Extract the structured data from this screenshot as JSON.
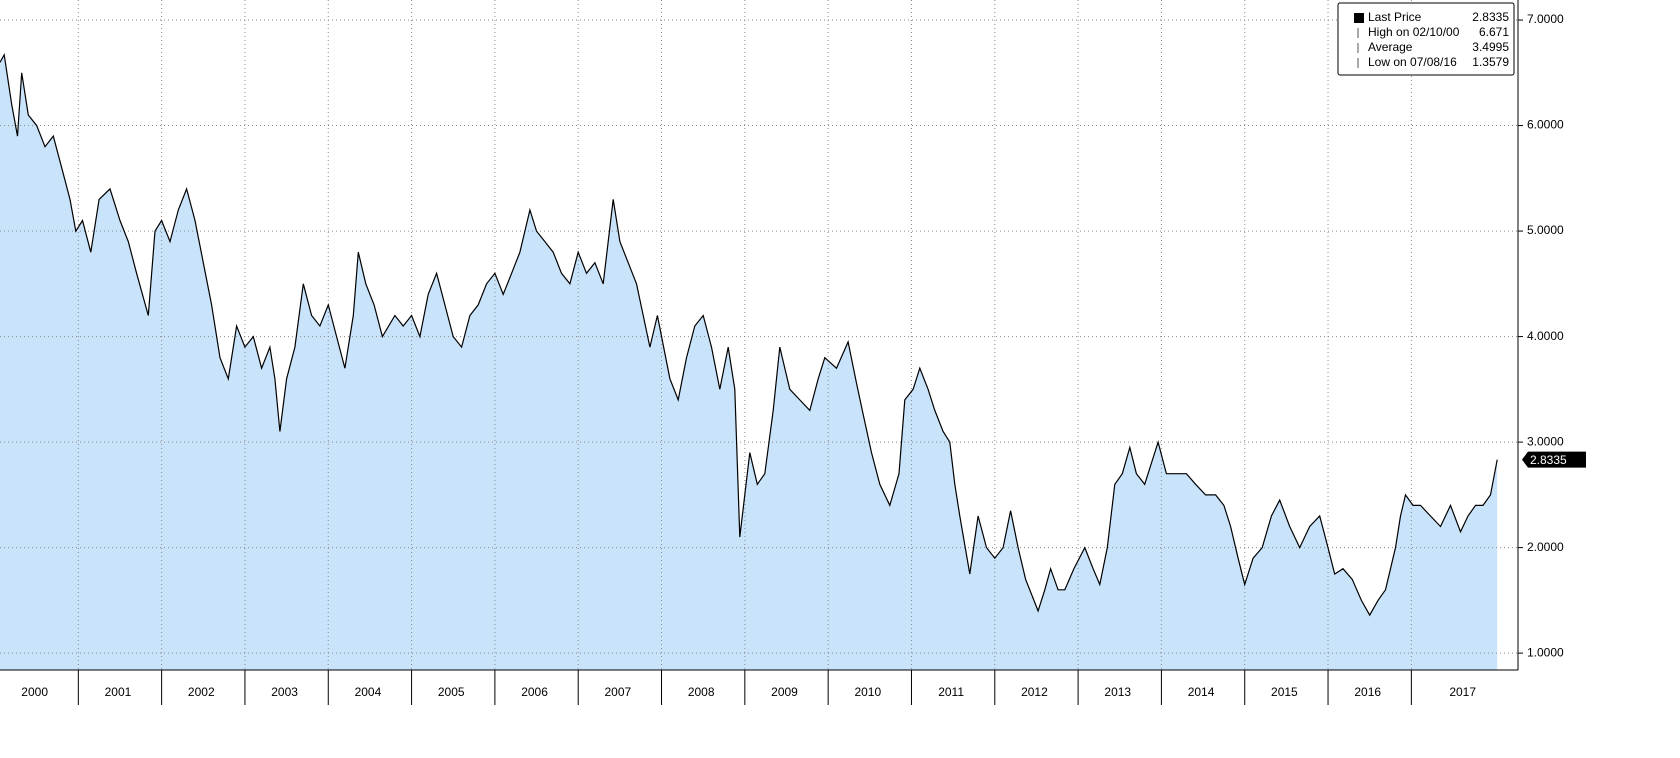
{
  "chart_data": {
    "type": "area",
    "color": "#000000",
    "fill": "#c9e3fb",
    "grid": true,
    "legend_position": "top-right",
    "xlim": [
      2000.06,
      2018.28
    ],
    "ylim": [
      0.84,
      7.19
    ],
    "xticks": [
      {
        "value": 2000,
        "label": "2000"
      },
      {
        "value": 2001,
        "label": "2001"
      },
      {
        "value": 2002,
        "label": "2002"
      },
      {
        "value": 2003,
        "label": "2003"
      },
      {
        "value": 2004,
        "label": "2004"
      },
      {
        "value": 2005,
        "label": "2005"
      },
      {
        "value": 2006,
        "label": "2006"
      },
      {
        "value": 2007,
        "label": "2007"
      },
      {
        "value": 2008,
        "label": "2008"
      },
      {
        "value": 2009,
        "label": "2009"
      },
      {
        "value": 2010,
        "label": "2010"
      },
      {
        "value": 2011,
        "label": "2011"
      },
      {
        "value": 2012,
        "label": "2012"
      },
      {
        "value": 2013,
        "label": "2013"
      },
      {
        "value": 2014,
        "label": "2014"
      },
      {
        "value": 2015,
        "label": "2015"
      },
      {
        "value": 2016,
        "label": "2016"
      },
      {
        "value": 2017,
        "label": "2017"
      }
    ],
    "yticks": [
      {
        "value": 1,
        "label": "1.0000"
      },
      {
        "value": 2,
        "label": "2.0000"
      },
      {
        "value": 3,
        "label": "3.0000"
      },
      {
        "value": 4,
        "label": "4.0000"
      },
      {
        "value": 5,
        "label": "5.0000"
      },
      {
        "value": 6,
        "label": "6.0000"
      },
      {
        "value": 7,
        "label": "7.0000"
      }
    ],
    "legend": [
      {
        "label": "Last Price",
        "value": 2.8335
      },
      {
        "label": "High on 02/10/00",
        "value": 6.671
      },
      {
        "label": "Average",
        "value": 3.4995
      },
      {
        "label": "Low on 07/08/16",
        "value": 1.3579
      }
    ],
    "x": [
      2000.06,
      2000.11,
      2000.2,
      2000.27,
      2000.32,
      2000.4,
      2000.5,
      2000.6,
      2000.7,
      2000.8,
      2000.9,
      2000.97,
      2001.05,
      2001.15,
      2001.25,
      2001.38,
      2001.5,
      2001.6,
      2001.7,
      2001.84,
      2001.92,
      2002.0,
      2002.1,
      2002.2,
      2002.3,
      2002.4,
      2002.5,
      2002.6,
      2002.7,
      2002.8,
      2002.9,
      2003.0,
      2003.1,
      2003.2,
      2003.3,
      2003.36,
      2003.42,
      2003.5,
      2003.6,
      2003.7,
      2003.8,
      2003.9,
      2004.0,
      2004.1,
      2004.2,
      2004.3,
      2004.36,
      2004.45,
      2004.55,
      2004.65,
      2004.8,
      2004.9,
      2005.0,
      2005.1,
      2005.2,
      2005.3,
      2005.4,
      2005.5,
      2005.6,
      2005.7,
      2005.8,
      2005.9,
      2006.0,
      2006.1,
      2006.2,
      2006.3,
      2006.42,
      2006.5,
      2006.6,
      2006.7,
      2006.8,
      2006.9,
      2007.0,
      2007.1,
      2007.2,
      2007.3,
      2007.42,
      2007.5,
      2007.6,
      2007.7,
      2007.86,
      2007.95,
      2008.1,
      2008.2,
      2008.3,
      2008.4,
      2008.5,
      2008.6,
      2008.7,
      2008.8,
      2008.88,
      2008.94,
      2009.06,
      2009.15,
      2009.24,
      2009.34,
      2009.42,
      2009.54,
      2009.66,
      2009.78,
      2009.88,
      2009.96,
      2010.1,
      2010.24,
      2010.33,
      2010.41,
      2010.52,
      2010.62,
      2010.74,
      2010.85,
      2010.92,
      2011.02,
      2011.1,
      2011.2,
      2011.28,
      2011.38,
      2011.46,
      2011.52,
      2011.58,
      2011.7,
      2011.8,
      2011.9,
      2012.0,
      2012.1,
      2012.19,
      2012.28,
      2012.37,
      2012.52,
      2012.6,
      2012.67,
      2012.76,
      2012.84,
      2012.95,
      2013.08,
      2013.18,
      2013.26,
      2013.35,
      2013.44,
      2013.53,
      2013.62,
      2013.7,
      2013.8,
      2013.88,
      2013.96,
      2014.06,
      2014.17,
      2014.3,
      2014.41,
      2014.53,
      2014.65,
      2014.75,
      2014.83,
      2014.92,
      2015.0,
      2015.1,
      2015.21,
      2015.32,
      2015.42,
      2015.54,
      2015.66,
      2015.78,
      2015.9,
      2016.0,
      2016.08,
      2016.18,
      2016.29,
      2016.4,
      2016.5,
      2016.6,
      2016.69,
      2016.75,
      2016.81,
      2016.87,
      2016.93,
      2017.02,
      2017.11,
      2017.23,
      2017.35,
      2017.47,
      2017.59,
      2017.68,
      2017.77,
      2017.86,
      2017.95,
      2018.03
    ],
    "series": [
      {
        "name": "Last Price",
        "values": [
          6.6,
          6.671,
          6.2,
          5.9,
          6.5,
          6.1,
          6.0,
          5.8,
          5.9,
          5.6,
          5.3,
          5.0,
          5.1,
          4.8,
          5.3,
          5.4,
          5.1,
          4.9,
          4.6,
          4.2,
          5.0,
          5.1,
          4.9,
          5.2,
          5.4,
          5.1,
          4.7,
          4.3,
          3.8,
          3.6,
          4.1,
          3.9,
          4.0,
          3.7,
          3.9,
          3.6,
          3.1,
          3.6,
          3.9,
          4.5,
          4.2,
          4.1,
          4.3,
          4.0,
          3.7,
          4.2,
          4.8,
          4.5,
          4.3,
          4.0,
          4.2,
          4.1,
          4.2,
          4.0,
          4.4,
          4.6,
          4.3,
          4.0,
          3.9,
          4.2,
          4.3,
          4.5,
          4.6,
          4.4,
          4.6,
          4.8,
          5.2,
          5.0,
          4.9,
          4.8,
          4.6,
          4.5,
          4.8,
          4.6,
          4.7,
          4.5,
          5.3,
          4.9,
          4.7,
          4.5,
          3.9,
          4.2,
          3.6,
          3.4,
          3.8,
          4.1,
          4.2,
          3.9,
          3.5,
          3.9,
          3.5,
          2.1,
          2.9,
          2.6,
          2.7,
          3.3,
          3.9,
          3.5,
          3.4,
          3.3,
          3.6,
          3.8,
          3.7,
          3.95,
          3.6,
          3.3,
          2.9,
          2.6,
          2.4,
          2.7,
          3.4,
          3.5,
          3.7,
          3.5,
          3.3,
          3.1,
          3.0,
          2.6,
          2.3,
          1.75,
          2.3,
          2.0,
          1.9,
          2.0,
          2.35,
          2.0,
          1.7,
          1.4,
          1.6,
          1.8,
          1.6,
          1.6,
          1.8,
          2.0,
          1.8,
          1.65,
          2.0,
          2.6,
          2.7,
          2.95,
          2.7,
          2.6,
          2.8,
          3.0,
          2.7,
          2.7,
          2.7,
          2.6,
          2.5,
          2.5,
          2.4,
          2.2,
          1.9,
          1.65,
          1.9,
          2.0,
          2.3,
          2.45,
          2.2,
          2.0,
          2.2,
          2.3,
          2.0,
          1.75,
          1.8,
          1.7,
          1.5,
          1.36,
          1.5,
          1.6,
          1.8,
          2.0,
          2.3,
          2.5,
          2.4,
          2.4,
          2.3,
          2.2,
          2.4,
          2.15,
          2.3,
          2.4,
          2.4,
          2.5,
          2.8335
        ]
      }
    ]
  }
}
